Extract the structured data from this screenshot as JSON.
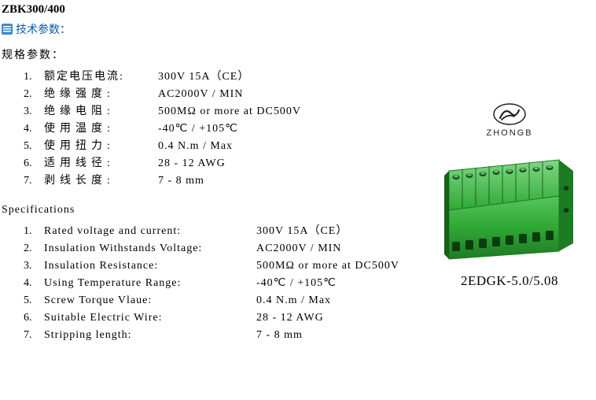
{
  "header": "ZBK300/400",
  "tech_label": "技术参数：",
  "section_cn_title": "规格参数：",
  "section_en_title": "Specifications",
  "specs_cn": [
    {
      "n": "1.",
      "label": "额定电压电流:",
      "tight": true,
      "value": "300V 15A（CE）"
    },
    {
      "n": "2.",
      "label": "绝缘强度:",
      "tight": false,
      "value": "AC2000V / MIN"
    },
    {
      "n": "3.",
      "label": "绝缘电阻:",
      "tight": false,
      "value": "500MΩ or more at DC500V"
    },
    {
      "n": "4.",
      "label": "使用温度:",
      "tight": false,
      "value": "-40℃ / +105℃"
    },
    {
      "n": "5.",
      "label": "使用扭力:",
      "tight": false,
      "value": "0.4 N.m / Max"
    },
    {
      "n": "6.",
      "label": "适用线径:",
      "tight": false,
      "value": "28 - 12 AWG"
    },
    {
      "n": "7.",
      "label": "剥线长度:",
      "tight": false,
      "value": "7 - 8 mm"
    }
  ],
  "specs_en": [
    {
      "n": "1.",
      "label": "Rated voltage and current:",
      "value": "300V 15A（CE）"
    },
    {
      "n": "2.",
      "label": "Insulation Withstands Voltage:",
      "value": "AC2000V / MIN"
    },
    {
      "n": "3.",
      "label": "Insulation Resistance:",
      "value": "500MΩ or more at DC500V"
    },
    {
      "n": "4.",
      "label": "Using Temperature Range:",
      "value": "-40℃ / +105℃"
    },
    {
      "n": "5.",
      "label": "Screw Torque Vlaue:",
      "value": "0.4 N.m / Max"
    },
    {
      "n": "6.",
      "label": "Suitable Electric Wire:",
      "value": "28 - 12 AWG"
    },
    {
      "n": "7.",
      "label": "Stripping length:",
      "value": "7 - 8 mm"
    }
  ],
  "logo_text": "ZHONGB",
  "part_number": "2EDGK-5.0/5.08",
  "colors": {
    "link_blue": "#0a5aa8",
    "connector_body": "#2fa836",
    "connector_dark": "#1f7a24",
    "connector_light": "#57c65d"
  }
}
